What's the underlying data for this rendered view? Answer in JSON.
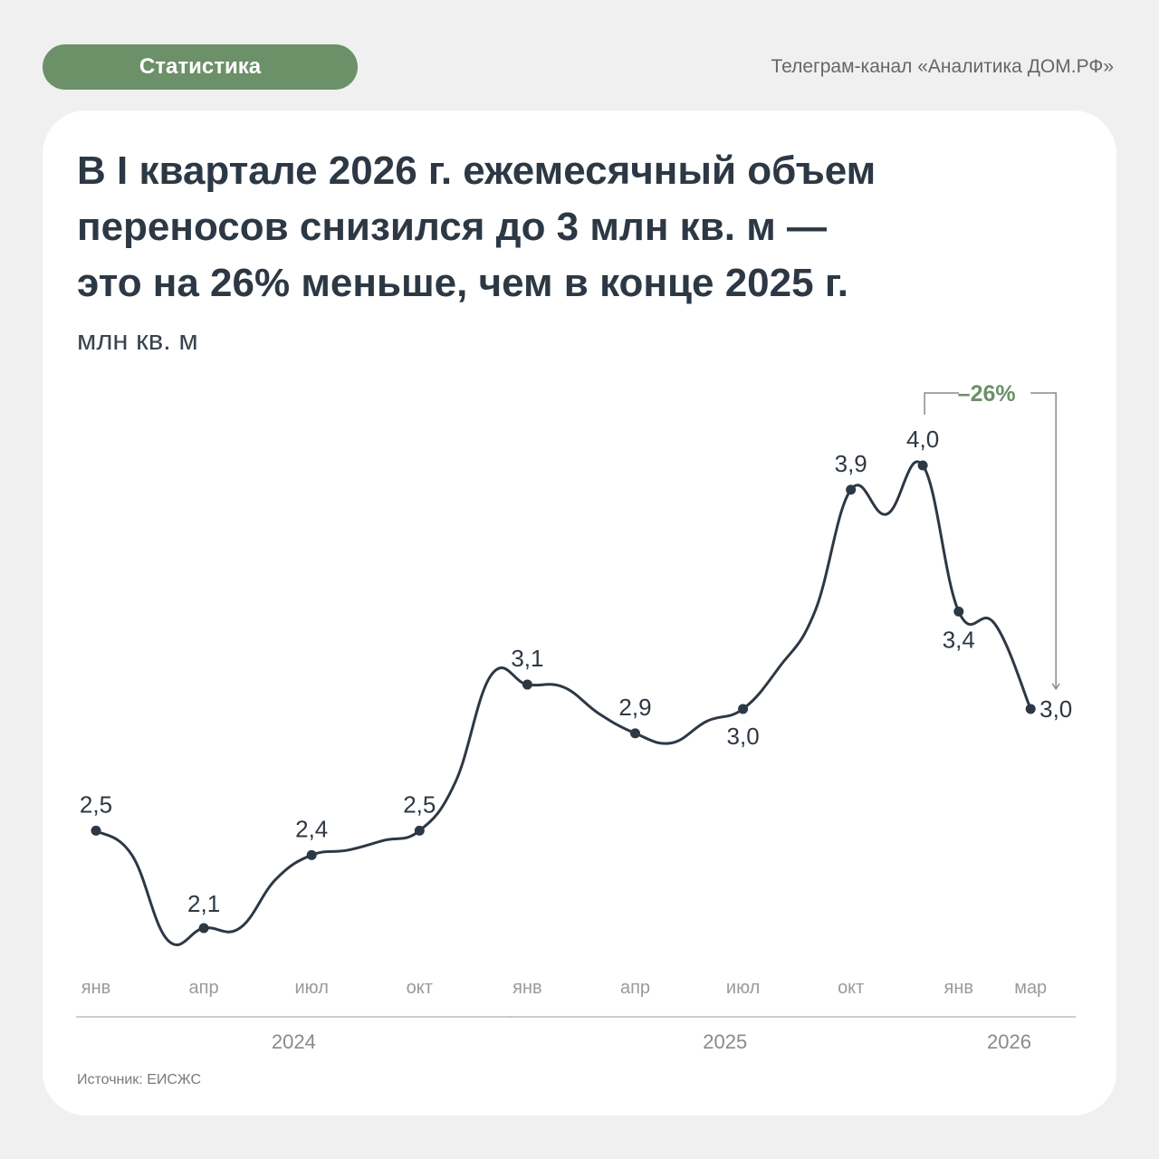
{
  "header": {
    "tag": "Статистика",
    "channel": "Телеграм-канал «Аналитика ДОМ.РФ»"
  },
  "title_lines": [
    "В I квартале 2026 г. ежемесячный объем",
    "переносов снизился до 3 млн кв. м —",
    "это на 26% меньше, чем в конце 2025 г."
  ],
  "unit": "млн кв. м",
  "source": "Источник: ЕИСЖС",
  "colors": {
    "accent": "#6c9068",
    "line": "#2d3845",
    "background": "#f0f0f0",
    "card": "#ffffff"
  },
  "chart_data": {
    "type": "line",
    "title": "",
    "xlabel": "",
    "ylabel": "млн кв. м",
    "ylim": [
      1.8,
      4.3
    ],
    "labeled_points": [
      {
        "x": "янв 2024",
        "y": 2.5,
        "label": "2,5"
      },
      {
        "x": "апр 2024",
        "y": 2.1,
        "label": "2,1"
      },
      {
        "x": "июл 2024",
        "y": 2.4,
        "label": "2,4"
      },
      {
        "x": "окт 2024",
        "y": 2.5,
        "label": "2,5"
      },
      {
        "x": "янв 2025",
        "y": 3.1,
        "label": "3,1"
      },
      {
        "x": "апр 2025",
        "y": 2.9,
        "label": "2,9"
      },
      {
        "x": "июл 2025",
        "y": 3.0,
        "label": "3,0"
      },
      {
        "x": "окт 2025",
        "y": 3.9,
        "label": "3,9"
      },
      {
        "x": "дек 2025",
        "y": 4.0,
        "label": "4,0"
      },
      {
        "x": "янв 2026",
        "y": 3.4,
        "label": "3,4"
      },
      {
        "x": "мар 2026",
        "y": 3.0,
        "label": "3,0"
      }
    ],
    "curve": [
      {
        "x": "янв 2024",
        "y": 2.5
      },
      {
        "x": "фев 2024",
        "y": 2.4
      },
      {
        "x": "мар 2024",
        "y": 2.05
      },
      {
        "x": "апр 2024",
        "y": 2.1
      },
      {
        "x": "май 2024",
        "y": 2.1
      },
      {
        "x": "июн 2024",
        "y": 2.3
      },
      {
        "x": "июл 2024",
        "y": 2.4
      },
      {
        "x": "авг 2024",
        "y": 2.42
      },
      {
        "x": "сен 2024",
        "y": 2.46
      },
      {
        "x": "окт 2024",
        "y": 2.5
      },
      {
        "x": "ноя 2024",
        "y": 2.7
      },
      {
        "x": "дек 2024",
        "y": 3.14
      },
      {
        "x": "янв 2025",
        "y": 3.1
      },
      {
        "x": "фев 2025",
        "y": 3.09
      },
      {
        "x": "мар 2025",
        "y": 2.98
      },
      {
        "x": "апр 2025",
        "y": 2.9
      },
      {
        "x": "май 2025",
        "y": 2.86
      },
      {
        "x": "июн 2025",
        "y": 2.95
      },
      {
        "x": "июл 2025",
        "y": 3.0
      },
      {
        "x": "авг 2025",
        "y": 3.17
      },
      {
        "x": "сен 2025",
        "y": 3.4
      },
      {
        "x": "окт 2025",
        "y": 3.9
      },
      {
        "x": "ноя 2025",
        "y": 3.8
      },
      {
        "x": "дек 2025",
        "y": 4.0
      },
      {
        "x": "янв 2026",
        "y": 3.4
      },
      {
        "x": "фев 2026",
        "y": 3.35
      },
      {
        "x": "мар 2026",
        "y": 3.0
      }
    ],
    "month_ticks": [
      {
        "x": "янв 2024",
        "label": "янв"
      },
      {
        "x": "апр 2024",
        "label": "апр"
      },
      {
        "x": "июл 2024",
        "label": "июл"
      },
      {
        "x": "окт 2024",
        "label": "окт"
      },
      {
        "x": "янв 2025",
        "label": "янв"
      },
      {
        "x": "апр 2025",
        "label": "апр"
      },
      {
        "x": "июл 2025",
        "label": "июл"
      },
      {
        "x": "окт 2025",
        "label": "окт"
      },
      {
        "x": "янв 2026",
        "label": "янв"
      },
      {
        "x": "мар 2026",
        "label": "мар"
      }
    ],
    "year_groups": [
      {
        "label": "2024",
        "from": "янв 2024",
        "to": "дек 2024"
      },
      {
        "label": "2025",
        "from": "янв 2025",
        "to": "дек 2025"
      },
      {
        "label": "2026",
        "from": "янв 2026",
        "to": "мар 2026"
      }
    ],
    "annotation": {
      "label": "–26%",
      "from": "дек 2025",
      "to": "мар 2026"
    }
  }
}
